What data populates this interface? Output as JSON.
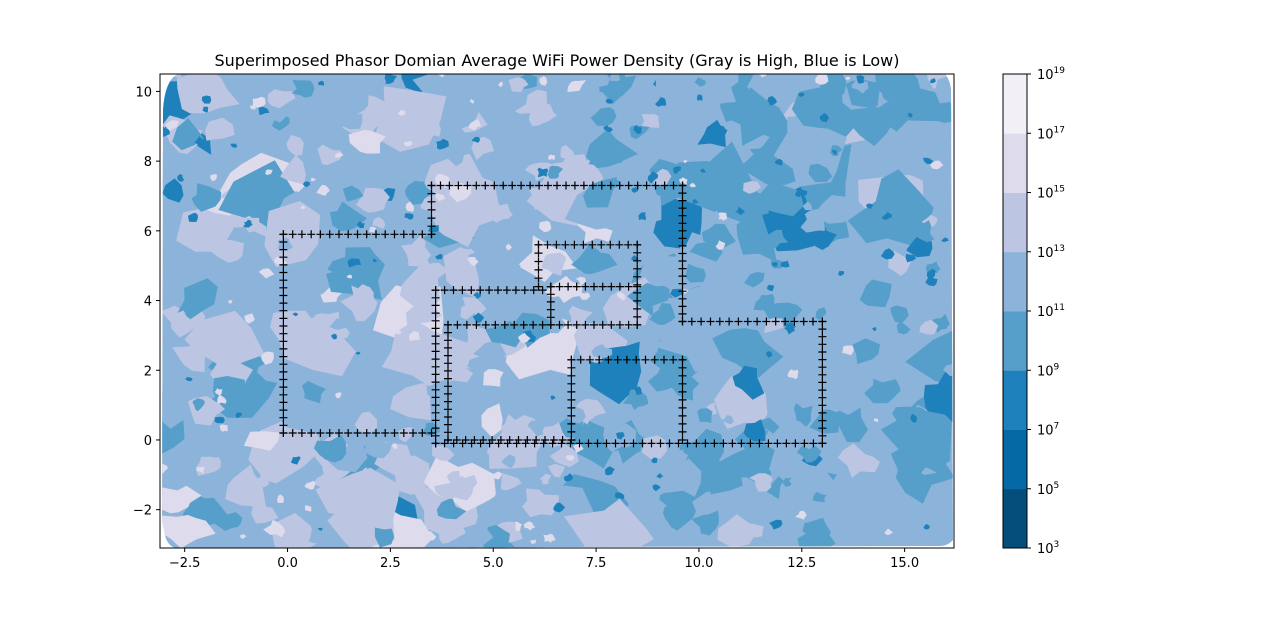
{
  "chart_data": {
    "type": "heatmap",
    "title": "Superimposed Phasor Domian Average WiFi Power Density (Gray is High, Blue is Low)",
    "xlabel": "",
    "ylabel": "",
    "xlim": [
      -3.1,
      16.2
    ],
    "ylim": [
      -3.1,
      10.5
    ],
    "x_ticks": [
      -2.5,
      0.0,
      2.5,
      5.0,
      7.5,
      10.0,
      12.5,
      15.0
    ],
    "x_tick_labels": [
      "−2.5",
      "0.0",
      "2.5",
      "5.0",
      "7.5",
      "10.0",
      "12.5",
      "15.0"
    ],
    "y_ticks": [
      -2,
      0,
      2,
      4,
      6,
      8,
      10
    ],
    "y_tick_labels": [
      "−2",
      "0",
      "2",
      "4",
      "6",
      "8",
      "10"
    ],
    "colorbar": {
      "scale": "log",
      "levels_exponent": [
        3,
        5,
        7,
        9,
        11,
        13,
        15,
        17,
        19
      ],
      "tick_labels": [
        {
          "base": "10",
          "exp": "3"
        },
        {
          "base": "10",
          "exp": "5"
        },
        {
          "base": "10",
          "exp": "7"
        },
        {
          "base": "10",
          "exp": "9"
        },
        {
          "base": "10",
          "exp": "11"
        },
        {
          "base": "10",
          "exp": "13"
        },
        {
          "base": "10",
          "exp": "15"
        },
        {
          "base": "10",
          "exp": "17"
        },
        {
          "base": "10",
          "exp": "19"
        }
      ],
      "colors": [
        "#034e7b",
        "#0569a5",
        "#1f81bb",
        "#579fcb",
        "#8cb3d9",
        "#bcc5e1",
        "#dddbec",
        "#f2eff6"
      ]
    },
    "walls": [
      [
        [
          -0.1,
          0.2
        ],
        [
          3.5,
          0.2
        ]
      ],
      [
        [
          -0.1,
          0.2
        ],
        [
          -0.1,
          5.9
        ]
      ],
      [
        [
          -0.1,
          5.9
        ],
        [
          3.5,
          5.9
        ]
      ],
      [
        [
          3.5,
          5.9
        ],
        [
          3.5,
          7.3
        ]
      ],
      [
        [
          3.5,
          7.3
        ],
        [
          9.6,
          7.3
        ]
      ],
      [
        [
          9.6,
          3.4
        ],
        [
          9.6,
          7.3
        ]
      ],
      [
        [
          9.6,
          3.4
        ],
        [
          13.0,
          3.4
        ]
      ],
      [
        [
          13.0,
          -0.1
        ],
        [
          13.0,
          3.4
        ]
      ],
      [
        [
          3.6,
          -0.1
        ],
        [
          13.0,
          -0.1
        ]
      ],
      [
        [
          3.6,
          -0.1
        ],
        [
          3.6,
          4.3
        ]
      ],
      [
        [
          3.6,
          4.3
        ],
        [
          6.2,
          4.3
        ]
      ],
      [
        [
          3.9,
          3.3
        ],
        [
          6.2,
          3.3
        ]
      ],
      [
        [
          3.9,
          0.0
        ],
        [
          3.9,
          3.3
        ]
      ],
      [
        [
          3.9,
          0.0
        ],
        [
          6.9,
          0.0
        ]
      ],
      [
        [
          6.9,
          0.0
        ],
        [
          6.9,
          2.3
        ]
      ],
      [
        [
          6.9,
          2.3
        ],
        [
          9.6,
          2.3
        ]
      ],
      [
        [
          9.6,
          0.0
        ],
        [
          9.6,
          2.3
        ]
      ],
      [
        [
          6.1,
          5.6
        ],
        [
          8.5,
          5.6
        ]
      ],
      [
        [
          6.1,
          4.4
        ],
        [
          6.1,
          5.6
        ]
      ],
      [
        [
          8.5,
          3.3
        ],
        [
          8.5,
          5.6
        ]
      ],
      [
        [
          6.4,
          4.4
        ],
        [
          8.5,
          4.4
        ]
      ],
      [
        [
          6.4,
          3.3
        ],
        [
          6.4,
          4.4
        ]
      ],
      [
        [
          6.4,
          3.3
        ],
        [
          8.5,
          3.3
        ]
      ]
    ],
    "grid": false,
    "legend": "colorbar-right"
  }
}
